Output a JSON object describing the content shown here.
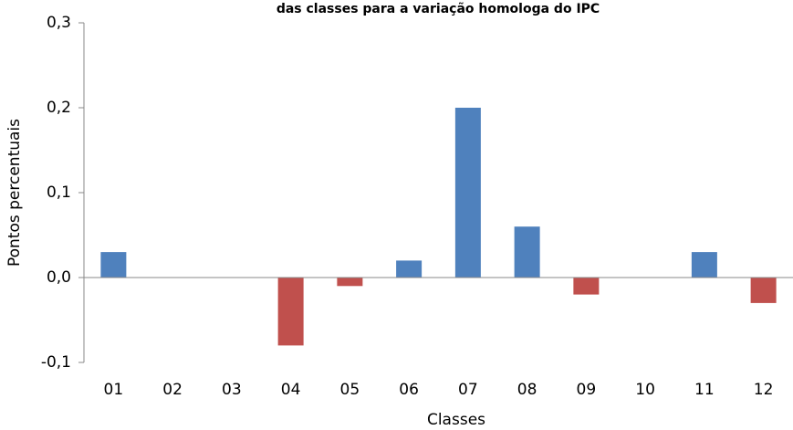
{
  "chart_data": {
    "type": "bar",
    "title": "das classes para a variação homologa do IPC",
    "x_label": "Classes",
    "y_label": "Pontos percentuais",
    "categories": [
      "01",
      "02",
      "03",
      "04",
      "05",
      "06",
      "07",
      "08",
      "09",
      "10",
      "11",
      "12"
    ],
    "values": [
      0.03,
      0,
      0,
      -0.08,
      -0.01,
      0.02,
      0.2,
      0.06,
      -0.02,
      0,
      0.03,
      -0.03
    ],
    "colors": [
      "#4f81bd",
      "#4f81bd",
      "#4f81bd",
      "#c0504d",
      "#c0504d",
      "#4f81bd",
      "#4f81bd",
      "#4f81bd",
      "#c0504d",
      "#4f81bd",
      "#4f81bd",
      "#c0504d"
    ],
    "ylim": [
      -0.1,
      0.3
    ],
    "yticks": [
      {
        "value": -0.1,
        "label": "-0,1"
      },
      {
        "value": 0,
        "label": "0,0"
      },
      {
        "value": 0.1,
        "label": "0,1"
      },
      {
        "value": 0.2,
        "label": "0,2"
      },
      {
        "value": 0.3,
        "label": "0,3"
      }
    ],
    "grid": false
  }
}
